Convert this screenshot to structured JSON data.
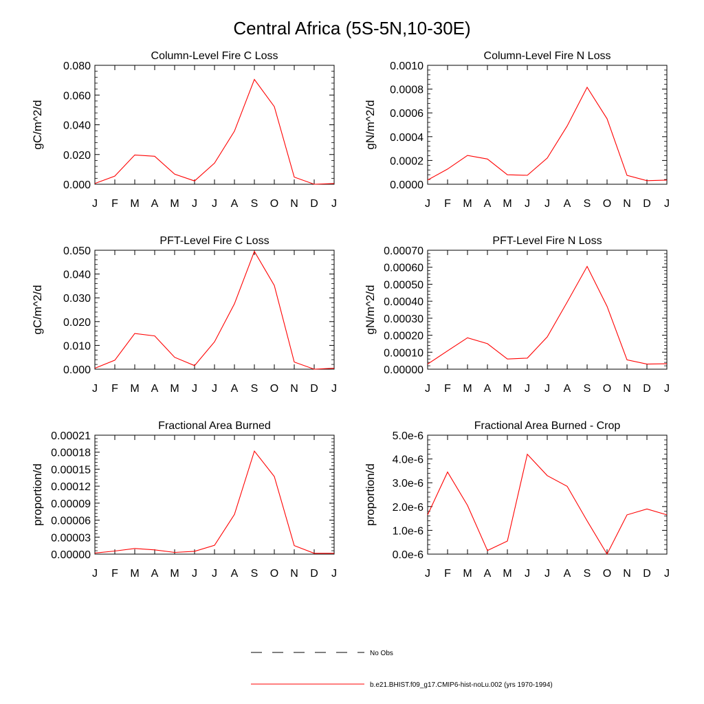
{
  "figure_title": "Central Africa (5S-5N,10-30E)",
  "colors": {
    "model_line": "#ff0000",
    "obs_line": "#000000",
    "axis": "#000000",
    "background": "#ffffff"
  },
  "legend": [
    {
      "label": "No Obs",
      "style": "dashed",
      "color": "#000000"
    },
    {
      "label": "b.e21.BHIST.f09_g17.CMIP6-hist-noLu.002 (yrs 1970-1994)",
      "style": "solid",
      "color": "#ff0000"
    }
  ],
  "chart_data": [
    {
      "type": "line",
      "title": "Column-Level Fire C Loss",
      "xlabel": "",
      "ylabel": "gC/m^2/d",
      "categories": [
        "J",
        "F",
        "M",
        "A",
        "M",
        "J",
        "J",
        "A",
        "S",
        "O",
        "N",
        "D",
        "J"
      ],
      "ylim": [
        0,
        0.08
      ],
      "yticks": [
        "0.000",
        "0.020",
        "0.040",
        "0.060",
        "0.080"
      ],
      "grid": false,
      "series": [
        {
          "values": [
            0.0005,
            0.0055,
            0.0197,
            0.0188,
            0.0068,
            0.0022,
            0.0142,
            0.0357,
            0.0705,
            0.0522,
            0.0048,
            0.0,
            0.0005
          ]
        }
      ]
    },
    {
      "type": "line",
      "title": "Column-Level Fire N Loss",
      "xlabel": "",
      "ylabel": "gN/m^2/d",
      "categories": [
        "J",
        "F",
        "M",
        "A",
        "M",
        "J",
        "J",
        "A",
        "S",
        "O",
        "N",
        "D",
        "J"
      ],
      "ylim": [
        0,
        0.001
      ],
      "yticks": [
        "0.0000",
        "0.0002",
        "0.0004",
        "0.0006",
        "0.0008",
        "0.0010"
      ],
      "grid": false,
      "series": [
        {
          "values": [
            3.5e-05,
            0.000128,
            0.000242,
            0.000212,
            8e-05,
            7.5e-05,
            0.00022,
            0.00049,
            0.000815,
            0.00055,
            7.5e-05,
            3e-05,
            3.5e-05
          ]
        }
      ]
    },
    {
      "type": "line",
      "title": "PFT-Level Fire C Loss",
      "xlabel": "",
      "ylabel": "gC/m^2/d",
      "categories": [
        "J",
        "F",
        "M",
        "A",
        "M",
        "J",
        "J",
        "A",
        "S",
        "O",
        "N",
        "D",
        "J"
      ],
      "ylim": [
        0,
        0.05
      ],
      "yticks": [
        "0.000",
        "0.010",
        "0.020",
        "0.030",
        "0.040",
        "0.050"
      ],
      "grid": false,
      "series": [
        {
          "values": [
            0.0004,
            0.0038,
            0.015,
            0.014,
            0.005,
            0.0015,
            0.0115,
            0.0275,
            0.0495,
            0.0352,
            0.003,
            0.0,
            0.0004
          ]
        }
      ]
    },
    {
      "type": "line",
      "title": "PFT-Level Fire N Loss",
      "xlabel": "",
      "ylabel": "gN/m^2/d",
      "categories": [
        "J",
        "F",
        "M",
        "A",
        "M",
        "J",
        "J",
        "A",
        "S",
        "O",
        "N",
        "D",
        "J"
      ],
      "ylim": [
        0,
        0.0007
      ],
      "yticks": [
        "0.00000",
        "0.00010",
        "0.00020",
        "0.00030",
        "0.00040",
        "0.00050",
        "0.00060",
        "0.00070"
      ],
      "grid": false,
      "series": [
        {
          "values": [
            3e-05,
            0.000108,
            0.000185,
            0.00015,
            6e-05,
            6.5e-05,
            0.00019,
            0.000395,
            0.000605,
            0.00037,
            5.5e-05,
            3e-05,
            3.2e-05
          ]
        }
      ]
    },
    {
      "type": "line",
      "title": "Fractional Area Burned",
      "xlabel": "",
      "ylabel": "proportion/d",
      "categories": [
        "J",
        "F",
        "M",
        "A",
        "M",
        "J",
        "J",
        "A",
        "S",
        "O",
        "N",
        "D",
        "J"
      ],
      "ylim": [
        0,
        0.00021
      ],
      "yticks": [
        "0.00000",
        "0.00003",
        "0.00006",
        "0.00009",
        "0.00012",
        "0.00015",
        "0.00018",
        "0.00021"
      ],
      "grid": false,
      "series": [
        {
          "values": [
            2e-06,
            5.5e-06,
            1e-05,
            7.5e-06,
            3e-06,
            5e-06,
            1.55e-05,
            7e-05,
            0.000182,
            0.000137,
            1.5e-05,
            1.5e-06,
            1.5e-06
          ]
        }
      ]
    },
    {
      "type": "line",
      "title": "Fractional Area Burned - Crop",
      "xlabel": "",
      "ylabel": "proportion/d",
      "categories": [
        "J",
        "F",
        "M",
        "A",
        "M",
        "J",
        "J",
        "A",
        "S",
        "O",
        "N",
        "D",
        "J"
      ],
      "ylim": [
        0,
        5e-06
      ],
      "yticks": [
        "0.0e-6",
        "1.0e-6",
        "2.0e-6",
        "3.0e-6",
        "4.0e-6",
        "5.0e-6"
      ],
      "grid": false,
      "series": [
        {
          "values": [
            1.65e-06,
            3.45e-06,
            2.05e-06,
            1.5e-07,
            5.5e-07,
            4.2e-06,
            3.3e-06,
            2.85e-06,
            1.4e-06,
            0.0,
            1.65e-06,
            1.9e-06,
            1.65e-06
          ]
        }
      ]
    }
  ]
}
